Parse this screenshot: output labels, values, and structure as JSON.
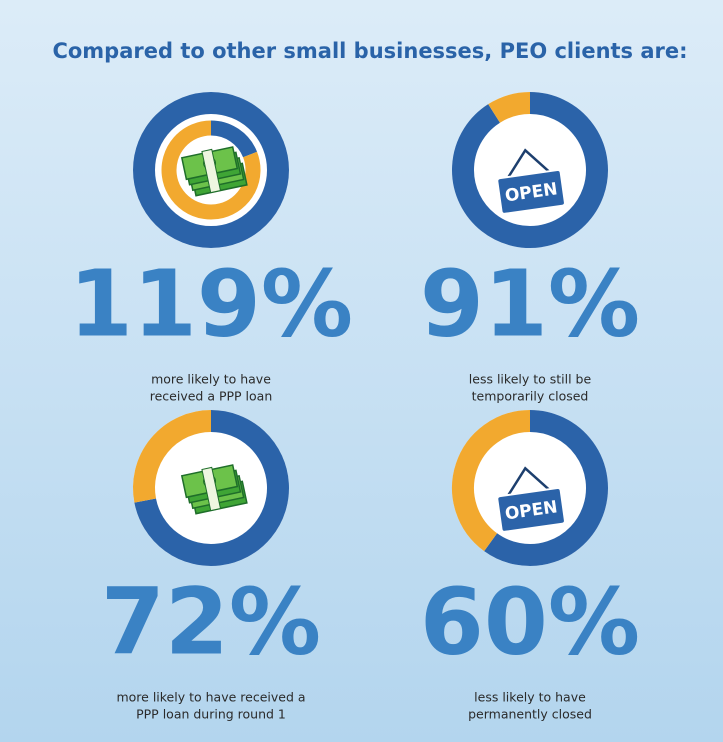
{
  "title": "Compared to other small businesses, PEO clients are:",
  "chart_data": [
    {
      "type": "donut",
      "values": [
        119
      ],
      "value_labels": [
        "119%"
      ],
      "caption": [
        "more likely to have",
        "received a PPP loan"
      ],
      "colors": [
        "#2b63a9",
        "#f2a92f"
      ]
    },
    {
      "type": "donut",
      "values": [
        91
      ],
      "value_labels": [
        "91%"
      ],
      "caption": [
        "less likely to still be",
        "temporarily closed"
      ],
      "sign_text": "OPEN",
      "colors": [
        "#2b63a9",
        "#f2a92f"
      ]
    },
    {
      "type": "donut",
      "values": [
        72
      ],
      "value_labels": [
        "72%"
      ],
      "caption": [
        "more likely to have received a",
        "PPP loan during round 1"
      ],
      "colors": [
        "#2b63a9",
        "#f2a92f"
      ]
    },
    {
      "type": "donut",
      "values": [
        60
      ],
      "value_labels": [
        "60%"
      ],
      "caption": [
        "less likely to have",
        "permanently closed"
      ],
      "sign_text": "OPEN",
      "colors": [
        "#2b63a9",
        "#f2a92f"
      ]
    }
  ]
}
